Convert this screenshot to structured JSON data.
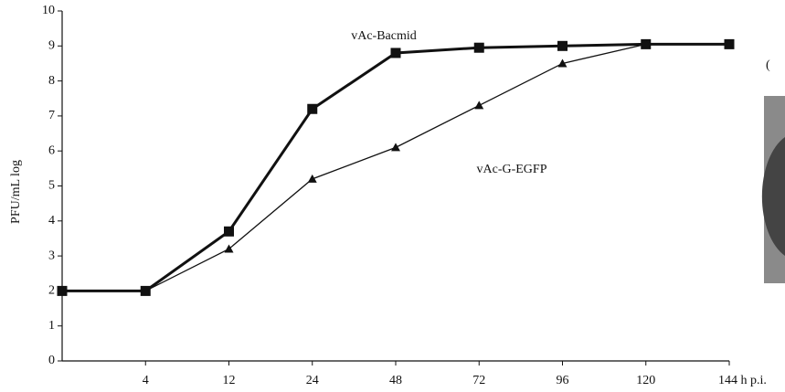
{
  "chart_data": {
    "type": "line",
    "y_label": "PFU/mL log",
    "categories": [
      null,
      "4",
      "12",
      "24",
      "48",
      "72",
      "96",
      "120",
      "144 h p.i."
    ],
    "series": [
      {
        "name": "vAc-Bacmid",
        "color": "#111111",
        "marker": "square",
        "values": [
          2.0,
          2.0,
          3.7,
          7.2,
          8.8,
          8.95,
          9.0,
          9.05,
          9.05
        ]
      },
      {
        "name": "vAc-G-EGFP",
        "color": "#111111",
        "marker": "triangle",
        "values": [
          2.0,
          2.0,
          3.2,
          5.2,
          6.1,
          7.3,
          8.5,
          9.05,
          9.05
        ]
      }
    ],
    "ylim": [
      0,
      10
    ],
    "yticks": [
      0,
      1,
      2,
      3,
      4,
      5,
      6,
      7,
      8,
      9,
      10
    ],
    "grid": false
  },
  "side_panel_label": "("
}
